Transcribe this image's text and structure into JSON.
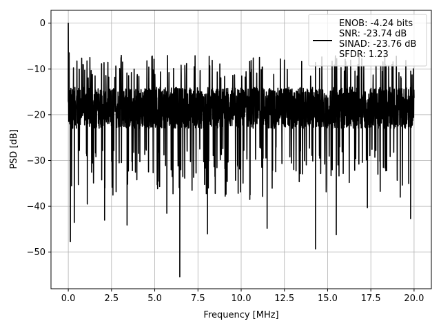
{
  "chart_data": {
    "type": "line",
    "title": "",
    "xlabel": "Frequency [MHz]",
    "ylabel": "PSD [dB]",
    "xlim": [
      -1.0,
      21.0
    ],
    "ylim": [
      -58.0,
      2.8
    ],
    "x_ticks": [
      0.0,
      2.5,
      5.0,
      7.5,
      10.0,
      12.5,
      15.0,
      17.5,
      20.0
    ],
    "x_tick_labels": [
      "0.0",
      "2.5",
      "5.0",
      "7.5",
      "10.0",
      "12.5",
      "15.0",
      "17.5",
      "20.0"
    ],
    "y_ticks": [
      0,
      -10,
      -20,
      -30,
      -40,
      -50
    ],
    "y_tick_labels": [
      "0",
      "−10",
      "−20",
      "−30",
      "−40",
      "−50"
    ],
    "grid": true,
    "legend_position": "top-right",
    "legend_lines": [
      "ENOB: -4.24 bits",
      "SNR: -23.74 dB",
      "SINAD: -23.76 dB",
      "SFDR: 1.23"
    ],
    "series": [
      {
        "color": "#000000",
        "x_start": 0.0,
        "x_end": 20.0,
        "noise_floor_db": -18.5,
        "noise_spread_db": 4.5,
        "notable_points": [
          {
            "x": 0.0,
            "y": 0.0
          },
          {
            "x": 0.05,
            "y": -6.5
          },
          {
            "x": 0.12,
            "y": -47.7
          },
          {
            "x": 0.35,
            "y": -43.5
          },
          {
            "x": 1.1,
            "y": -39.5
          },
          {
            "x": 2.1,
            "y": -43.0
          },
          {
            "x": 3.4,
            "y": -44.1
          },
          {
            "x": 5.7,
            "y": -41.5
          },
          {
            "x": 6.45,
            "y": -55.4
          },
          {
            "x": 8.05,
            "y": -46.0
          },
          {
            "x": 10.5,
            "y": -38.5
          },
          {
            "x": 11.5,
            "y": -44.8
          },
          {
            "x": 14.3,
            "y": -49.3
          },
          {
            "x": 15.5,
            "y": -46.2
          },
          {
            "x": 17.3,
            "y": -40.3
          },
          {
            "x": 19.2,
            "y": -38.0
          },
          {
            "x": 19.8,
            "y": -42.7
          }
        ]
      }
    ]
  }
}
